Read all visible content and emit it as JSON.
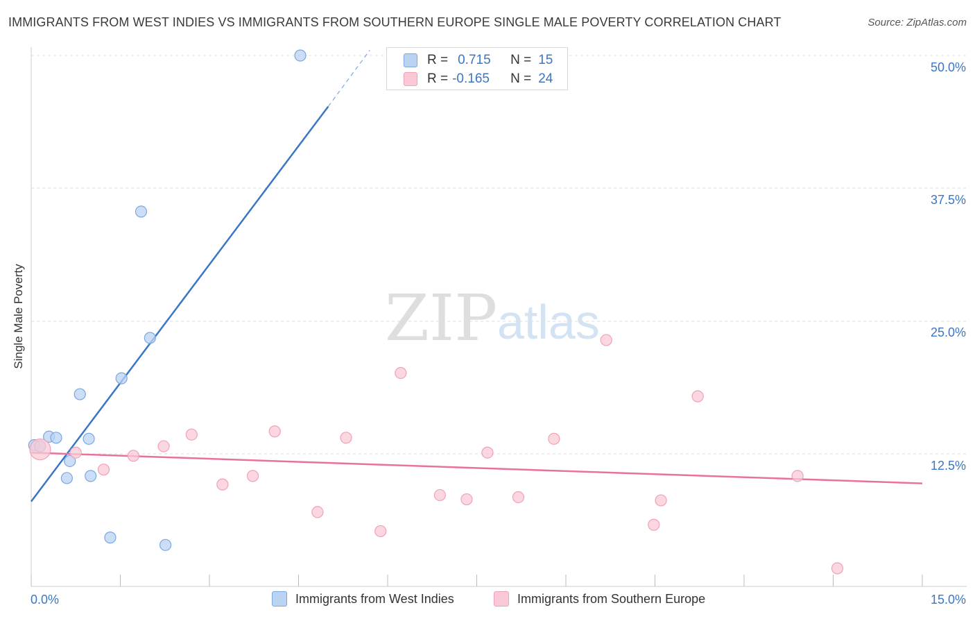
{
  "title": "IMMIGRANTS FROM WEST INDIES VS IMMIGRANTS FROM SOUTHERN EUROPE SINGLE MALE POVERTY CORRELATION CHART",
  "source": {
    "label": "Source:",
    "site": "ZipAtlas.com"
  },
  "watermark": {
    "zip": "ZIP",
    "atlas": "atlas"
  },
  "colors": {
    "blue": "#3a76c4",
    "blue_fill": "#b9d3f3",
    "blue_stroke": "#7aa7de",
    "pink": "#e8739a",
    "pink_fill": "#f9c9d6",
    "pink_stroke": "#f0a0b8",
    "grid": "#dcdcdc",
    "axis_text": "#3a76c4"
  },
  "legend": {
    "rows": [
      {
        "r_label": "R =",
        "r_value": "0.715",
        "n_label": "N =",
        "n_value": "15"
      },
      {
        "r_label": "R =",
        "r_value": "-0.165",
        "n_label": "N =",
        "n_value": "24"
      }
    ]
  },
  "chart_data": {
    "type": "scatter",
    "title": "IMMIGRANTS FROM WEST INDIES VS IMMIGRANTS FROM SOUTHERN EUROPE SINGLE MALE POVERTY CORRELATION CHART",
    "xlabel": "",
    "ylabel": "Single Male Poverty",
    "xlim": [
      0,
      15
    ],
    "ylim": [
      0,
      50
    ],
    "x_tick_labels": [
      "0.0%",
      "15.0%"
    ],
    "y_ticks": [
      12.5,
      25.0,
      37.5,
      50.0
    ],
    "y_tick_labels": [
      "12.5%",
      "25.0%",
      "37.5%",
      "50.0%"
    ],
    "grid": true,
    "series": [
      {
        "name": "Immigrants from West Indies",
        "color": "blue",
        "r": 0.715,
        "n": 15,
        "points": [
          {
            "x": 0.05,
            "y": 13.3
          },
          {
            "x": 0.15,
            "y": 13.2
          },
          {
            "x": 0.3,
            "y": 14.1
          },
          {
            "x": 0.42,
            "y": 14.0
          },
          {
            "x": 0.6,
            "y": 10.2
          },
          {
            "x": 0.65,
            "y": 11.8
          },
          {
            "x": 0.82,
            "y": 18.1
          },
          {
            "x": 0.97,
            "y": 13.9
          },
          {
            "x": 1.0,
            "y": 10.4
          },
          {
            "x": 1.33,
            "y": 4.6
          },
          {
            "x": 1.52,
            "y": 19.6
          },
          {
            "x": 1.85,
            "y": 35.3
          },
          {
            "x": 2.0,
            "y": 23.4
          },
          {
            "x": 2.26,
            "y": 3.9
          },
          {
            "x": 4.53,
            "y": 50.0
          }
        ],
        "trend": {
          "x0": 0.0,
          "y0": 8.0,
          "x1": 5.0,
          "y1": 45.2,
          "dash_x1": 5.7,
          "dash_y1": 50.5
        }
      },
      {
        "name": "Immigrants from Southern Europe",
        "color": "pink",
        "r": -0.165,
        "n": 24,
        "points": [
          {
            "x": 0.15,
            "y": 12.9,
            "big": true
          },
          {
            "x": 0.75,
            "y": 12.6
          },
          {
            "x": 1.22,
            "y": 11.0
          },
          {
            "x": 1.72,
            "y": 12.3
          },
          {
            "x": 2.23,
            "y": 13.2
          },
          {
            "x": 2.7,
            "y": 14.3
          },
          {
            "x": 3.22,
            "y": 9.6
          },
          {
            "x": 3.73,
            "y": 10.4
          },
          {
            "x": 4.1,
            "y": 14.6
          },
          {
            "x": 4.82,
            "y": 7.0
          },
          {
            "x": 5.3,
            "y": 14.0
          },
          {
            "x": 5.88,
            "y": 5.2
          },
          {
            "x": 6.22,
            "y": 20.1
          },
          {
            "x": 6.88,
            "y": 8.6
          },
          {
            "x": 7.33,
            "y": 8.2
          },
          {
            "x": 7.68,
            "y": 12.6
          },
          {
            "x": 8.2,
            "y": 8.4
          },
          {
            "x": 8.8,
            "y": 13.9
          },
          {
            "x": 9.68,
            "y": 23.2
          },
          {
            "x": 10.48,
            "y": 5.8
          },
          {
            "x": 10.6,
            "y": 8.1
          },
          {
            "x": 11.22,
            "y": 17.9
          },
          {
            "x": 12.9,
            "y": 10.4
          },
          {
            "x": 13.57,
            "y": 1.7
          }
        ],
        "trend": {
          "x0": 0.0,
          "y0": 12.6,
          "x1": 15.0,
          "y1": 9.7
        }
      }
    ]
  },
  "bottom_legend": [
    {
      "label": "Immigrants from West Indies"
    },
    {
      "label": "Immigrants from Southern Europe"
    }
  ]
}
